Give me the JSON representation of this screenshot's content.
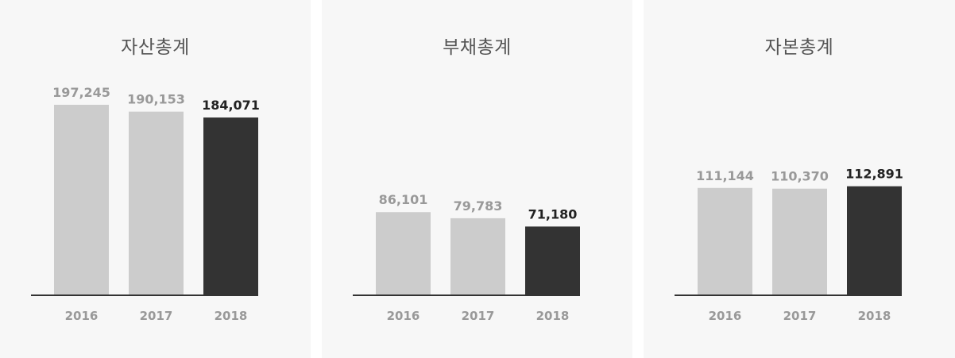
{
  "colors": {
    "panel_background": "#f7f7f7",
    "bar_past": "#cccccc",
    "bar_current": "#333333",
    "label_past": "#999999",
    "label_current": "#222222",
    "title": "#555555",
    "axis": "#333333"
  },
  "chart_data": [
    {
      "type": "bar",
      "title": "자산총계",
      "categories": [
        "2016",
        "2017",
        "2018"
      ],
      "values": [
        197245,
        190153,
        184071
      ],
      "value_labels": [
        "197,245",
        "190,153",
        "184,071"
      ],
      "highlight_index": 2,
      "grid": false
    },
    {
      "type": "bar",
      "title": "부채총계",
      "categories": [
        "2016",
        "2017",
        "2018"
      ],
      "values": [
        86101,
        79783,
        71180
      ],
      "value_labels": [
        "86,101",
        "79,783",
        "71,180"
      ],
      "highlight_index": 2,
      "grid": false
    },
    {
      "type": "bar",
      "title": "자본총계",
      "categories": [
        "2016",
        "2017",
        "2018"
      ],
      "values": [
        111144,
        110370,
        112891
      ],
      "value_labels": [
        "111,144",
        "110,370",
        "112,891"
      ],
      "highlight_index": 2,
      "grid": false
    }
  ]
}
